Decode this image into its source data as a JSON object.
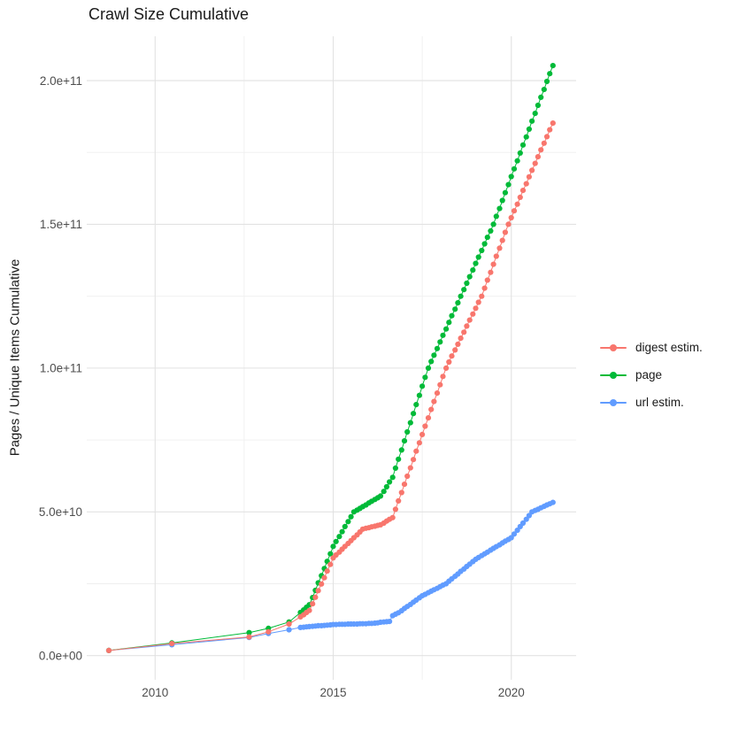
{
  "chart_data": {
    "type": "scatter",
    "title": "Crawl Size Cumulative",
    "xlabel": "",
    "ylabel": "Pages / Unique Items Cumulative",
    "legend_position": "right",
    "grid": "major+minor",
    "background": "#ffffff",
    "grid_major_color": "#e2e2e2",
    "grid_minor_color": "#efefef",
    "axis_text_color": "#4d4d4d",
    "value_unit": "1e9",
    "xlim": [
      2008.08,
      2021.82
    ],
    "ylim_e9": [
      -8.4,
      215.4
    ],
    "x_ticks": [
      {
        "value": 2010,
        "label": "2010"
      },
      {
        "value": 2015,
        "label": "2015"
      },
      {
        "value": 2020,
        "label": "2020"
      }
    ],
    "x_minor": [
      2012.5,
      2017.5
    ],
    "y_ticks": [
      {
        "value_e9": 0,
        "label": "0.0e+00"
      },
      {
        "value_e9": 50,
        "label": "5.0e+10"
      },
      {
        "value_e9": 100,
        "label": "1.0e+11"
      },
      {
        "value_e9": 150,
        "label": "1.5e+11"
      },
      {
        "value_e9": 200,
        "label": "2.0e+11"
      }
    ],
    "y_minor_e9": [
      25,
      75,
      125,
      175
    ],
    "x_years": [
      2008.7,
      2010.47,
      2012.64,
      2013.18,
      2013.76,
      2014.08,
      2014.17,
      2014.25,
      2014.33,
      2014.42,
      2014.5,
      2014.58,
      2014.67,
      2014.75,
      2014.83,
      2014.92,
      2015,
      2015.08,
      2015.17,
      2015.25,
      2015.33,
      2015.42,
      2015.5,
      2015.58,
      2015.67,
      2015.75,
      2015.83,
      2015.92,
      2016,
      2016.08,
      2016.17,
      2016.25,
      2016.33,
      2016.42,
      2016.5,
      2016.58,
      2016.67,
      2016.75,
      2016.83,
      2016.92,
      2017,
      2017.08,
      2017.17,
      2017.25,
      2017.33,
      2017.42,
      2017.5,
      2017.58,
      2017.67,
      2017.75,
      2017.83,
      2017.92,
      2018,
      2018.08,
      2018.17,
      2018.25,
      2018.33,
      2018.42,
      2018.5,
      2018.58,
      2018.67,
      2018.75,
      2018.83,
      2018.92,
      2019,
      2019.08,
      2019.17,
      2019.25,
      2019.33,
      2019.42,
      2019.5,
      2019.58,
      2019.67,
      2019.75,
      2019.83,
      2019.92,
      2020,
      2020.08,
      2020.17,
      2020.25,
      2020.33,
      2020.42,
      2020.5,
      2020.58,
      2020.67,
      2020.75,
      2020.83,
      2020.92,
      2021,
      2021.08,
      2021.17
    ],
    "series": [
      {
        "name": "digest estim.",
        "color": "#F8766D",
        "values_e9": [
          1.8,
          4.2,
          6.5,
          8.3,
          11.0,
          13.5,
          14.2,
          15.0,
          15.7,
          18.0,
          20.3,
          22.6,
          24.9,
          27.1,
          29.4,
          31.7,
          34.0,
          35.0,
          36.0,
          37.0,
          38.0,
          39.0,
          40.0,
          41.0,
          42.0,
          43.0,
          44.0,
          44.3,
          44.5,
          44.8,
          45.0,
          45.3,
          45.5,
          46.1,
          46.8,
          47.4,
          48.0,
          50.9,
          53.8,
          56.7,
          59.6,
          62.4,
          65.3,
          68.2,
          71.1,
          74.0,
          76.9,
          79.8,
          82.7,
          85.6,
          88.4,
          91.3,
          94.2,
          97.1,
          100.0,
          102.1,
          104.2,
          106.3,
          108.3,
          110.4,
          112.5,
          114.6,
          116.7,
          118.8,
          120.8,
          122.9,
          125.0,
          127.8,
          130.6,
          133.3,
          136.1,
          138.9,
          141.7,
          144.4,
          147.2,
          150.0,
          152.3,
          154.7,
          157.0,
          159.4,
          161.8,
          164.1,
          166.5,
          168.8,
          171.2,
          173.5,
          175.9,
          178.2,
          180.5,
          182.9,
          185.2
        ]
      },
      {
        "name": "page",
        "color": "#00BA38",
        "values_e9": [
          1.8,
          4.4,
          8.0,
          9.5,
          11.7,
          15.0,
          15.9,
          16.8,
          17.7,
          20.2,
          22.7,
          25.3,
          27.8,
          30.3,
          32.8,
          35.4,
          38.0,
          39.7,
          41.4,
          43.1,
          44.9,
          46.6,
          48.3,
          50.0,
          50.6,
          51.2,
          51.8,
          52.4,
          53.1,
          53.7,
          54.3,
          54.9,
          55.5,
          57.1,
          58.7,
          60.4,
          62.0,
          65.2,
          68.3,
          71.5,
          74.7,
          77.8,
          81.0,
          84.2,
          87.3,
          90.5,
          93.7,
          96.8,
          100.0,
          102.3,
          104.5,
          106.8,
          109.1,
          111.4,
          113.6,
          115.9,
          118.2,
          120.5,
          122.7,
          125.0,
          127.3,
          129.5,
          131.8,
          134.1,
          136.4,
          138.6,
          140.9,
          143.2,
          145.5,
          147.7,
          150.0,
          152.8,
          155.5,
          158.3,
          161.0,
          163.8,
          166.6,
          169.3,
          172.1,
          174.8,
          177.6,
          180.4,
          183.1,
          185.9,
          188.6,
          191.4,
          194.2,
          196.9,
          199.7,
          202.4,
          205.2
        ]
      },
      {
        "name": "url estim.",
        "color": "#619CFF",
        "values_e9": [
          1.8,
          3.8,
          6.3,
          7.7,
          9.0,
          9.8,
          9.9,
          10.0,
          10.1,
          10.2,
          10.3,
          10.4,
          10.4,
          10.5,
          10.6,
          10.7,
          10.8,
          10.8,
          10.9,
          10.9,
          10.9,
          11.0,
          11.0,
          11.0,
          11.0,
          11.1,
          11.1,
          11.1,
          11.2,
          11.2,
          11.3,
          11.4,
          11.6,
          11.7,
          11.8,
          11.9,
          13.9,
          14.4,
          14.9,
          15.6,
          16.4,
          17.1,
          17.8,
          18.6,
          19.3,
          20.1,
          20.8,
          21.3,
          21.9,
          22.4,
          22.9,
          23.4,
          24.0,
          24.5,
          25.0,
          25.9,
          26.7,
          27.6,
          28.4,
          29.3,
          30.1,
          31.0,
          31.8,
          32.7,
          33.5,
          34.1,
          34.8,
          35.4,
          36.0,
          36.7,
          37.3,
          37.9,
          38.5,
          39.2,
          39.8,
          40.4,
          41.0,
          42.3,
          43.6,
          44.9,
          46.1,
          47.4,
          48.7,
          50.0,
          50.5,
          50.9,
          51.4,
          51.9,
          52.4,
          52.8,
          53.3
        ]
      }
    ]
  }
}
